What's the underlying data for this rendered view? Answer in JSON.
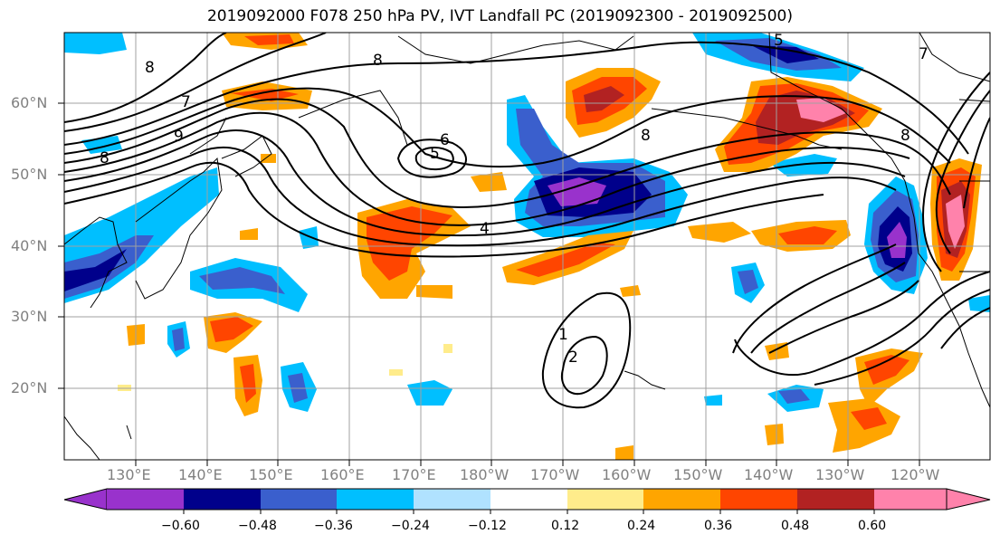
{
  "title": "2019092000 F078 250 hPa PV, IVT Landfall PC (2019092300 - 2019092500)",
  "lat_labels": [
    "60°N",
    "50°N",
    "40°N",
    "30°N",
    "20°N"
  ],
  "lon_labels": [
    "130°E",
    "140°E",
    "150°E",
    "160°E",
    "170°E",
    "180°W",
    "170°W",
    "160°W",
    "150°W",
    "140°W",
    "130°W",
    "120°W"
  ],
  "colorbar": {
    "ticks": [
      "−0.60",
      "−0.48",
      "−0.36",
      "−0.24",
      "−0.12",
      "0.12",
      "0.24",
      "0.36",
      "0.48",
      "0.60"
    ],
    "colors": [
      "#9932cc",
      "#00008b",
      "#3a5fcd",
      "#00bfff",
      "#b0e2ff",
      "#ffffff",
      "#ffec8b",
      "#ffa500",
      "#ff4500",
      "#b22222",
      "#ff82ab"
    ]
  },
  "contour_labels": [
    "8",
    "8",
    "7",
    "9",
    "8",
    "6",
    "5",
    "4",
    "8",
    "8",
    "1",
    "2",
    "7",
    "5"
  ],
  "colors": {
    "land_outline": "#000000",
    "grid": "#a0a0a0",
    "label_grey": "#808080"
  }
}
